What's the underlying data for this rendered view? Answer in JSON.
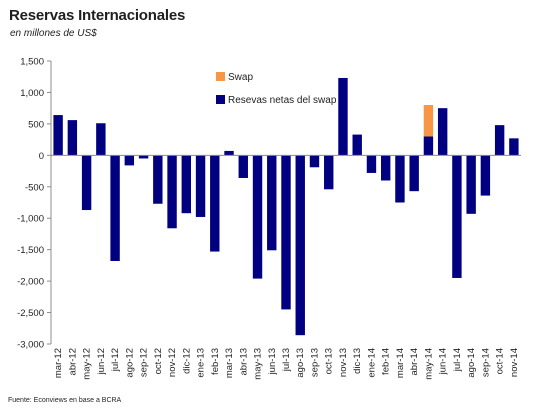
{
  "header": {
    "title": "Reservas Internacionales",
    "subtitle": "en millones de US$"
  },
  "footer": {
    "source": "Fuente: Econviews en base a BCRA"
  },
  "chart_data": {
    "type": "bar",
    "stacked": true,
    "title": "Reservas Internacionales",
    "subtitle": "en millones de US$",
    "xlabel": "",
    "ylabel": "",
    "ylim": [
      -3000,
      1500
    ],
    "yticks": [
      1500,
      1000,
      500,
      0,
      -500,
      -1000,
      -1500,
      -2000,
      -2500,
      -3000
    ],
    "ytick_labels": [
      "1,500",
      "1,000",
      "500",
      "0",
      "-500",
      "-1,000",
      "-1,500",
      "-2,000",
      "-2,500",
      "-3,000"
    ],
    "grid": false,
    "legend_position": "top-right",
    "colors": {
      "net": "#000080",
      "swap": "#F79646"
    },
    "categories": [
      "mar-12",
      "abr-12",
      "may-12",
      "jun-12",
      "jul-12",
      "ago-12",
      "sep-12",
      "oct-12",
      "nov-12",
      "dic-12",
      "ene-13",
      "feb-13",
      "mar-13",
      "abr-13",
      "may-13",
      "jun-13",
      "jul-13",
      "ago-13",
      "sep-13",
      "oct-13",
      "nov-13",
      "dic-13",
      "ene-14",
      "feb-14",
      "mar-14",
      "abr-14",
      "may-14",
      "jun-14",
      "jul-14",
      "ago-14",
      "sep-14",
      "oct-14",
      "nov-14"
    ],
    "tick_categories": [
      "mar-12",
      "abr-12",
      "may-12",
      "jun-12",
      "jul-12",
      "ago-12",
      "sep-12",
      "oct-12",
      "nov-12",
      "dic-12",
      "ene-13",
      "feb-13",
      "mar-13",
      "abr-13",
      "may-13",
      "jun-13",
      "jul-13",
      "ago-13",
      "sep-13",
      "oct-13",
      "nov-13",
      "dic-13",
      "ene-14",
      "feb-14",
      "mar-14",
      "abr-14",
      "may-14",
      "jun-14",
      "jul-14",
      "ago-14",
      "sep-14",
      "oct-14",
      "nov-14"
    ],
    "series": [
      {
        "name": "Resevas netas del swap",
        "color": "#000080",
        "values": [
          640,
          560,
          -870,
          510,
          -1680,
          -160,
          -50,
          -770,
          -1160,
          -920,
          -980,
          -1530,
          70,
          -360,
          -1960,
          -1510,
          -2450,
          -2860,
          -190,
          -540,
          1230,
          330,
          -280,
          -400,
          -750,
          -570,
          300,
          750,
          -1950,
          -930,
          -640,
          480,
          270
        ]
      },
      {
        "name": "Swap",
        "color": "#F79646",
        "values": [
          0,
          0,
          0,
          0,
          0,
          0,
          0,
          0,
          0,
          0,
          0,
          0,
          0,
          0,
          0,
          0,
          0,
          0,
          0,
          0,
          0,
          0,
          0,
          0,
          0,
          0,
          500,
          0,
          0,
          0,
          0,
          0,
          0
        ]
      }
    ]
  }
}
